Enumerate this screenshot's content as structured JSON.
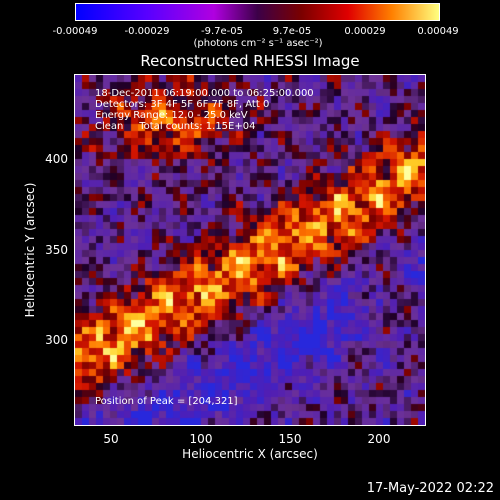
{
  "colorbar": {
    "ticks": [
      "-0.00049",
      "-0.00029",
      "-9.7e-05",
      "9.7e-05",
      "0.00029",
      "0.00049"
    ],
    "unit": "(photons cm⁻² s⁻¹ asec⁻²)",
    "colors": [
      "#0000ff",
      "#5a00ff",
      "#b000e0",
      "#3c0048",
      "#7a0000",
      "#e00000",
      "#ff8000",
      "#ffff80"
    ]
  },
  "chart_data": {
    "type": "heatmap",
    "title": "Reconstructed RHESSI Image",
    "xlabel": "Heliocentric X (arcsec)",
    "ylabel": "Heliocentric Y (arcsec)",
    "xlim": [
      33,
      225
    ],
    "ylim": [
      250,
      442
    ],
    "xticks": [
      "50",
      "100",
      "150",
      "200"
    ],
    "yticks": [
      "300",
      "350",
      "400"
    ],
    "peak": [
      204,
      321
    ],
    "annotations": [
      "18-Dec-2011 06:19:00.000 to 06:25:00.000",
      "Detectors: 3F 4F 5F 6F 7F 8F, Att 0",
      "Energy Range: 12.0 - 25.0 keV",
      "Clean     Total counts: 1.15E+04"
    ],
    "peak_label": "Position of Peak = [204,321]"
  },
  "footer": {
    "date": "17-May-2022 02:22"
  }
}
